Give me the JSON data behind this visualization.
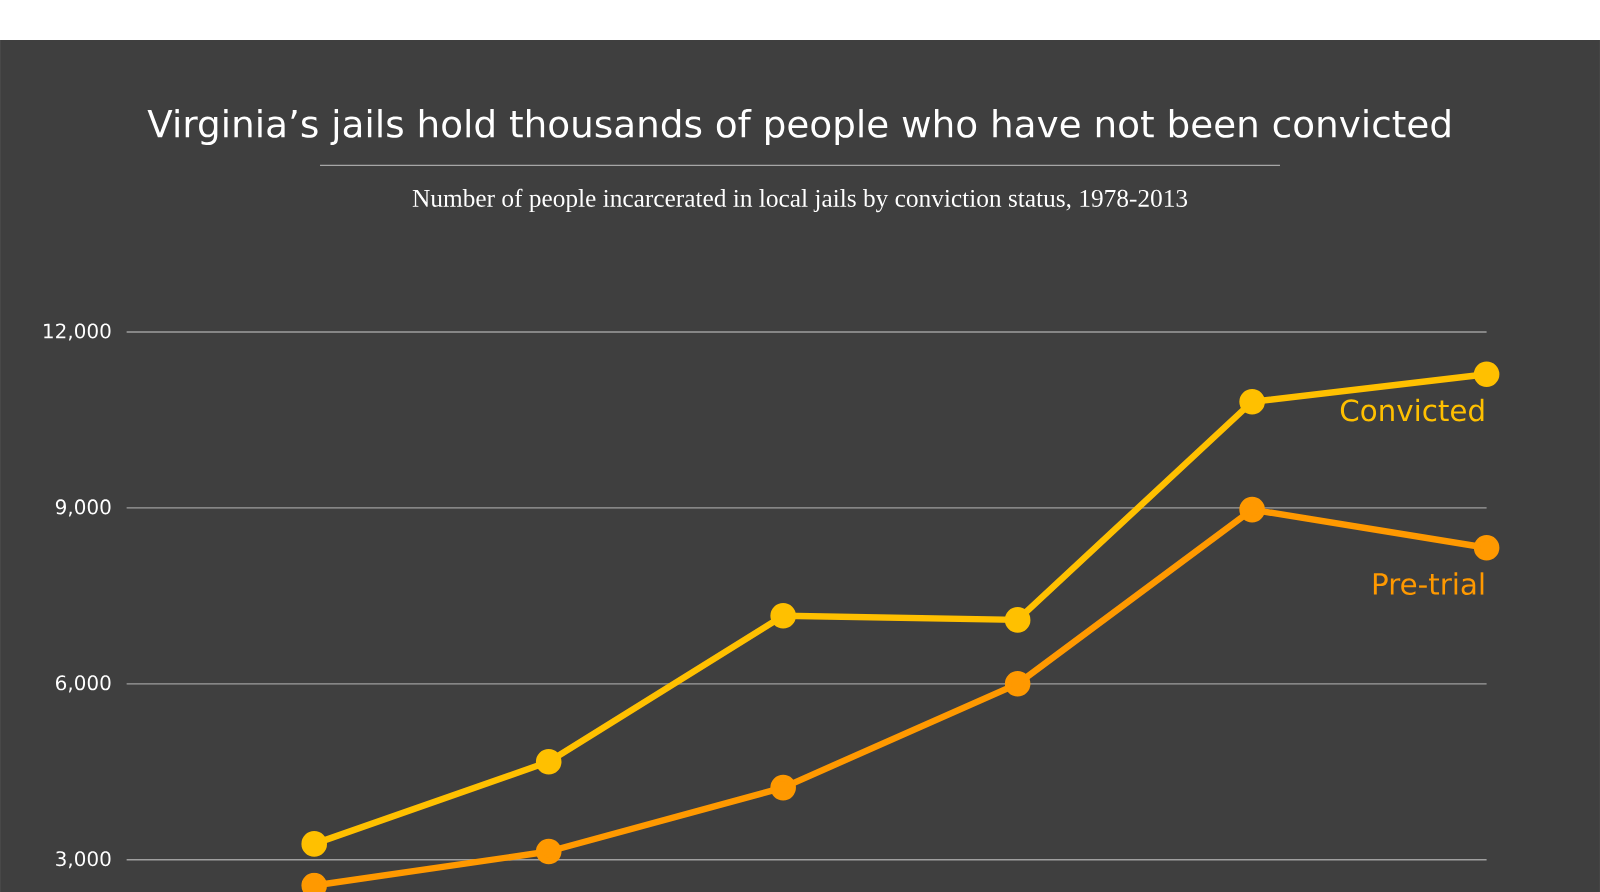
{
  "chart_data": {
    "type": "line",
    "title": "Virginia’s jails hold thousands of people who have not been convicted",
    "subtitle": "Number of people incarcerated in local jails by conviction status, 1978-2013",
    "categories": [
      null,
      null,
      null,
      null,
      null,
      null
    ],
    "series": [
      {
        "name": "Convicted",
        "color": "#ffc000",
        "values": [
          3270,
          4670,
          7160,
          7090,
          10810,
          11280
        ]
      },
      {
        "name": "Pre-trial",
        "color": "#ff9900",
        "values": [
          2560,
          3140,
          4230,
          6000,
          8970,
          8320
        ]
      }
    ],
    "ylim": [
      2450,
      12000
    ],
    "yticks": [
      {
        "value": 3000,
        "label": "3,000"
      },
      {
        "value": 6000,
        "label": "6,000"
      },
      {
        "value": 9000,
        "label": "9,000"
      },
      {
        "value": 12000,
        "label": "12,000"
      }
    ],
    "grid": "y",
    "tick_labels": "y",
    "marker": "circle",
    "line_style": "solid"
  }
}
